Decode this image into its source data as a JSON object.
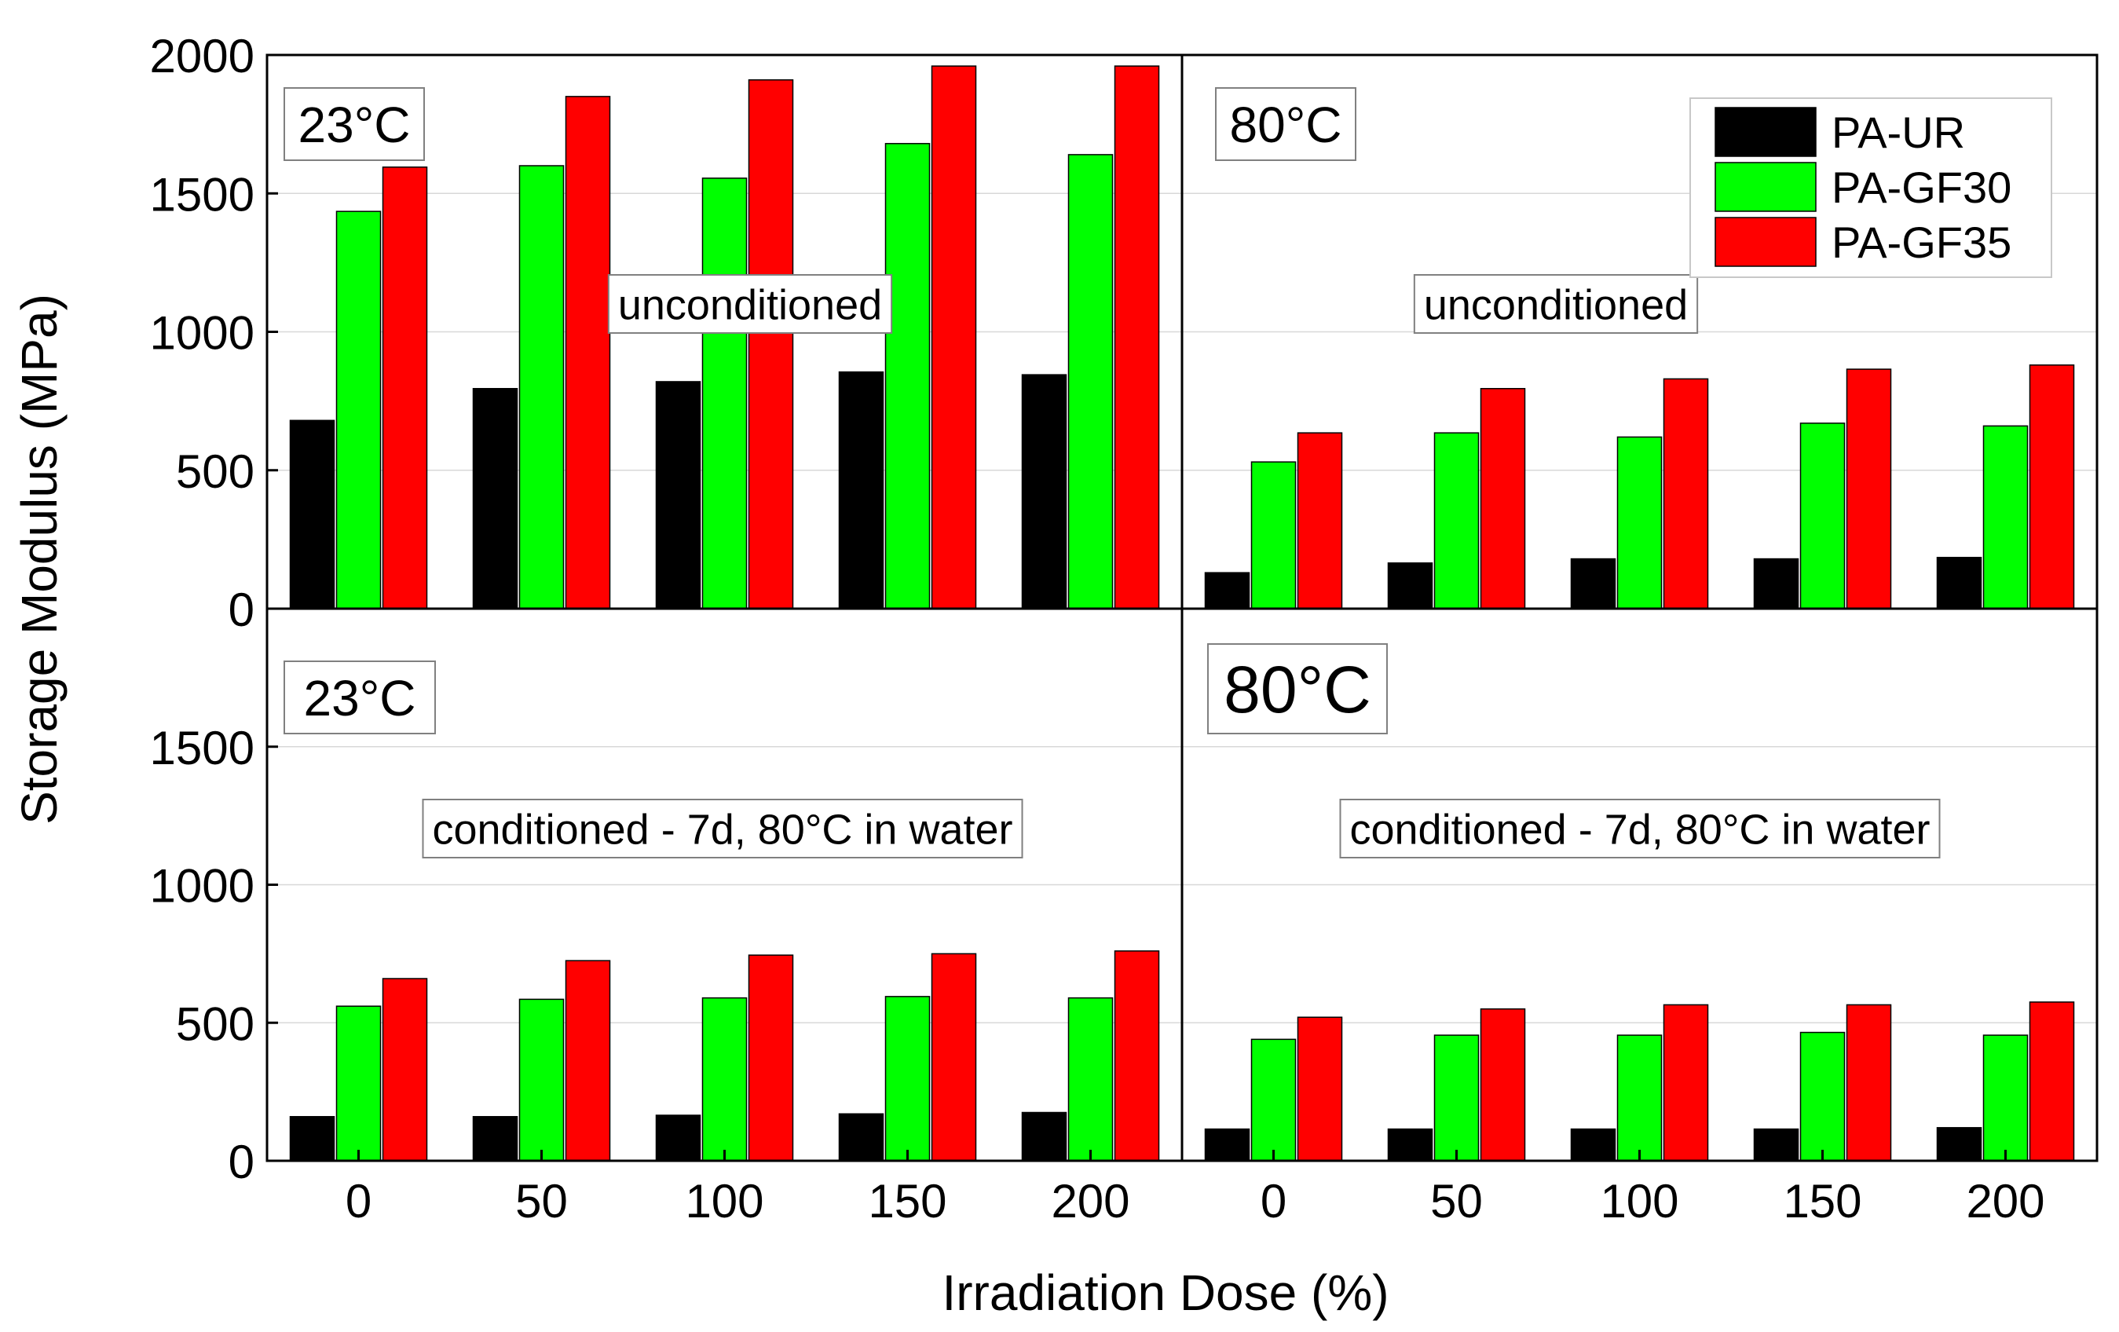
{
  "chart_data": {
    "type": "bar",
    "xlabel": "Irradiation Dose (%)",
    "ylabel": "Storage Modulus (MPa)",
    "categories": [
      "0",
      "50",
      "100",
      "150",
      "200"
    ],
    "series_meta": [
      {
        "name": "PA-UR",
        "color": "#000000"
      },
      {
        "name": "PA-GF30",
        "color": "#00ff00"
      },
      {
        "name": "PA-GF35",
        "color": "#ff0000"
      }
    ],
    "legend": {
      "placement": "top-right of top-right panel",
      "entries": [
        "PA-UR",
        "PA-GF30",
        "PA-GF35"
      ]
    },
    "grid": true,
    "panels": [
      {
        "id": "top-left",
        "temperature_label": "23°C",
        "condition_label": "unconditioned",
        "ylim": [
          0,
          2000
        ],
        "yticks": [
          "0",
          "500",
          "1000",
          "1500",
          "2000"
        ],
        "series": [
          {
            "name": "PA-UR",
            "values": [
              680,
              795,
              820,
              855,
              845
            ]
          },
          {
            "name": "PA-GF30",
            "values": [
              1435,
              1600,
              1555,
              1680,
              1640
            ]
          },
          {
            "name": "PA-GF35",
            "values": [
              1595,
              1850,
              1910,
              1960,
              1960
            ]
          }
        ]
      },
      {
        "id": "top-right",
        "temperature_label": "80°C",
        "condition_label": "unconditioned",
        "ylim": [
          0,
          2000
        ],
        "series": [
          {
            "name": "PA-UR",
            "values": [
              130,
              165,
              180,
              180,
              185
            ]
          },
          {
            "name": "PA-GF30",
            "values": [
              530,
              635,
              620,
              670,
              660
            ]
          },
          {
            "name": "PA-GF35",
            "values": [
              635,
              795,
              830,
              865,
              880
            ]
          }
        ]
      },
      {
        "id": "bottom-left",
        "temperature_label": "23°C",
        "condition_label": "conditioned - 7d, 80°C in water",
        "ylim": [
          0,
          2000
        ],
        "yticks": [
          "0",
          "500",
          "1000",
          "1500"
        ],
        "xticks": [
          "0",
          "50",
          "100",
          "150",
          "200"
        ],
        "series": [
          {
            "name": "PA-UR",
            "values": [
              160,
              160,
              165,
              170,
              175
            ]
          },
          {
            "name": "PA-GF30",
            "values": [
              560,
              585,
              590,
              595,
              590
            ]
          },
          {
            "name": "PA-GF35",
            "values": [
              660,
              725,
              745,
              750,
              760
            ]
          }
        ]
      },
      {
        "id": "bottom-right",
        "temperature_label": "80°C",
        "condition_label": "conditioned - 7d, 80°C in water",
        "ylim": [
          0,
          2000
        ],
        "xticks": [
          "0",
          "50",
          "100",
          "150",
          "200"
        ],
        "series": [
          {
            "name": "PA-UR",
            "values": [
              115,
              115,
              115,
              115,
              120
            ]
          },
          {
            "name": "PA-GF30",
            "values": [
              440,
              455,
              455,
              465,
              455
            ]
          },
          {
            "name": "PA-GF35",
            "values": [
              520,
              550,
              565,
              565,
              575
            ]
          }
        ]
      }
    ]
  }
}
